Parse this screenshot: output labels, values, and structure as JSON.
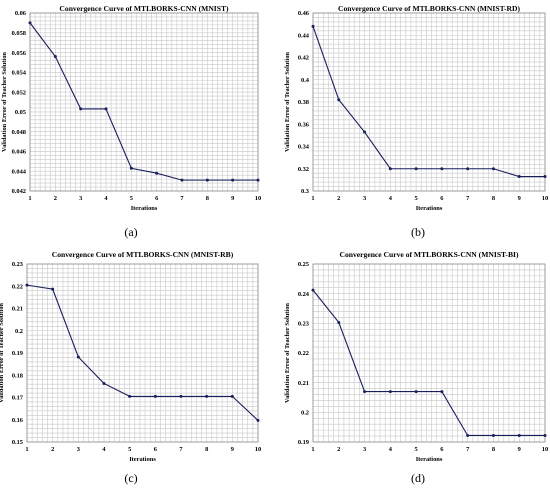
{
  "chart_data": [
    {
      "type": "line",
      "title": "Convergence Curve of MTLBORKS-CNN (MNIST)",
      "xlabel": "Iterations",
      "ylabel": "Validation Error of Teacher Solution",
      "x": [
        1,
        2,
        3,
        4,
        5,
        6,
        7,
        8,
        9,
        10
      ],
      "series": [
        {
          "values": [
            0.059,
            0.0556,
            0.0503,
            0.0503,
            0.0443,
            0.0438,
            0.0431,
            0.0431,
            0.0431,
            0.0431
          ]
        }
      ],
      "xlim": [
        1,
        10
      ],
      "ylim": [
        0.042,
        0.06
      ],
      "yticks": [
        "0.042",
        "0.044",
        "0.046",
        "0.048",
        "0.05",
        "0.052",
        "0.054",
        "0.056",
        "0.058",
        "0.06"
      ],
      "caption": "(a)"
    },
    {
      "type": "line",
      "title": "Convergence Curve of MTLBORKS-CNN (MNIST-RD)",
      "xlabel": "Iterations",
      "ylabel": "Validation Error of Teacher Solution",
      "x": [
        1,
        2,
        3,
        4,
        5,
        6,
        7,
        8,
        9,
        10
      ],
      "series": [
        {
          "values": [
            0.448,
            0.382,
            0.353,
            0.32,
            0.32,
            0.32,
            0.32,
            0.32,
            0.313,
            0.313
          ]
        }
      ],
      "xlim": [
        1,
        10
      ],
      "ylim": [
        0.3,
        0.46
      ],
      "yticks": [
        "0.3",
        "0.32",
        "0.34",
        "0.36",
        "0.38",
        "0.4",
        "0.42",
        "0.44",
        "0.46"
      ],
      "caption": "(b)"
    },
    {
      "type": "line",
      "title": "Convergence Curve of MTLBORKS-CNN (MNIST-RB)",
      "xlabel": "Iterations",
      "ylabel": "Validation Error of Teacher Solution",
      "x": [
        1,
        2,
        3,
        4,
        5,
        6,
        7,
        8,
        9,
        10
      ],
      "series": [
        {
          "values": [
            0.2205,
            0.2187,
            0.1882,
            0.1763,
            0.1705,
            0.1705,
            0.1705,
            0.1705,
            0.1705,
            0.1597
          ]
        }
      ],
      "xlim": [
        1,
        10
      ],
      "ylim": [
        0.15,
        0.23
      ],
      "yticks": [
        "0.15",
        "0.16",
        "0.17",
        "0.18",
        "0.19",
        "0.2",
        "0.21",
        "0.22",
        "0.23"
      ],
      "caption": "(c)"
    },
    {
      "type": "line",
      "title": "Convergence Curve of MTLBORKS-CNN (MNIST-BI)",
      "xlabel": "Iterations",
      "ylabel": "Validation Error of Teacher Solution",
      "x": [
        1,
        2,
        3,
        4,
        5,
        6,
        7,
        8,
        9,
        10
      ],
      "series": [
        {
          "values": [
            0.2412,
            0.2303,
            0.207,
            0.207,
            0.207,
            0.207,
            0.1922,
            0.1922,
            0.1922,
            0.1922
          ]
        }
      ],
      "xlim": [
        1,
        10
      ],
      "ylim": [
        0.19,
        0.25
      ],
      "yticks": [
        "0.19",
        "0.2",
        "0.21",
        "0.22",
        "0.23",
        "0.24",
        "0.25"
      ],
      "caption": "(d)"
    }
  ]
}
